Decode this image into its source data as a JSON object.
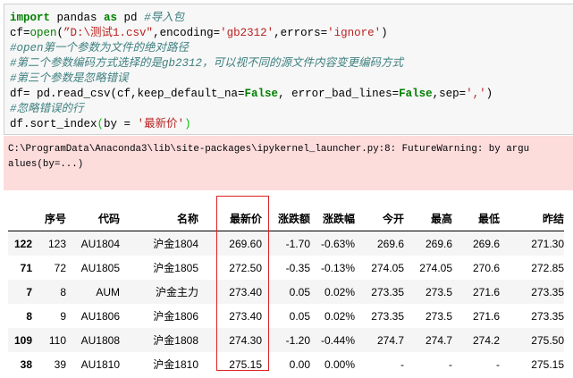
{
  "code": {
    "line1": {
      "kw1": "import",
      "t1": " pandas ",
      "kw2": "as",
      "t2": " pd ",
      "comment": "#导入包"
    },
    "line2": {
      "t1": "cf=",
      "fn": "open",
      "p1": "(",
      "s1": "”D:\\测试1.csv″",
      "t2": ",encoding=",
      "s2": "'gb2312'",
      "t3": ",errors=",
      "s3": "'ignore'",
      "p2": ")"
    },
    "comment1": "#open第一个参数为文件的绝对路径",
    "comment2": "#第二个参数编码方式选择的是gb2312，可以视不同的源文件内容变更编码方式",
    "comment3": "#第三个参数是忽略错误",
    "line6": {
      "t1": "df= pd.read_csv(cf,keep_default_na=",
      "kw1": "False",
      "t2": ", error_bad_lines=",
      "kw2": "False",
      "t3": ",sep=",
      "s1": "','",
      "t4": ")"
    },
    "comment4": "#忽略错误的行",
    "line8": {
      "t1": "df.sort_index",
      "p1": "(",
      "t2": "by = ",
      "s1": "'最新价'",
      "p2": ")"
    }
  },
  "warning": {
    "line1": "C:\\ProgramData\\Anaconda3\\lib\\site-packages\\ipykernel_launcher.py:8: FutureWarning: by argu",
    "line2": "alues(by=...)"
  },
  "table": {
    "columns": [
      "",
      "序号",
      "代码",
      "名称",
      "最新价",
      "涨跌额",
      "涨跌幅",
      "今开",
      "最高",
      "最低",
      "昨结"
    ],
    "rows": [
      [
        "122",
        "123",
        "AU1804",
        "沪金1804",
        "269.60",
        "-1.70",
        "-0.63%",
        "269.6",
        "269.6",
        "269.6",
        "271.30"
      ],
      [
        "71",
        "72",
        "AU1805",
        "沪金1805",
        "272.50",
        "-0.35",
        "-0.13%",
        "274.05",
        "274.05",
        "270.6",
        "272.85"
      ],
      [
        "7",
        "8",
        "AUM",
        "沪金主力",
        "273.40",
        "0.05",
        "0.02%",
        "273.35",
        "273.5",
        "271.6",
        "273.35"
      ],
      [
        "8",
        "9",
        "AU1806",
        "沪金1806",
        "273.40",
        "0.05",
        "0.02%",
        "273.35",
        "273.5",
        "271.6",
        "273.35"
      ],
      [
        "109",
        "110",
        "AU1808",
        "沪金1808",
        "274.30",
        "-1.20",
        "-0.44%",
        "274.7",
        "274.7",
        "274.2",
        "275.50"
      ],
      [
        "38",
        "39",
        "AU1810",
        "沪金1810",
        "275.15",
        "0.00",
        "0.00%",
        "-",
        "-",
        "-",
        "275.15"
      ]
    ]
  },
  "highlight_color": "#e02020"
}
